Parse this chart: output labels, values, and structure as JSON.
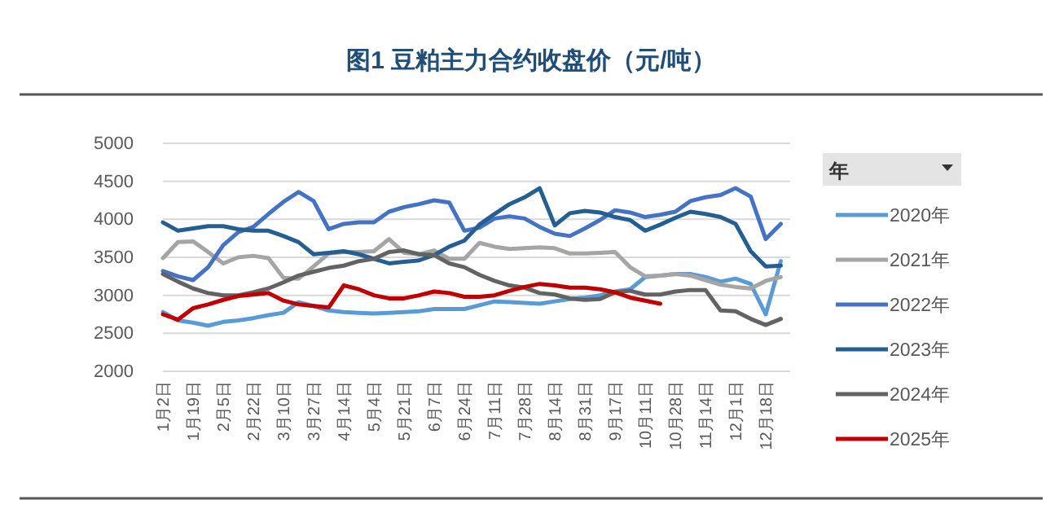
{
  "chart_data": {
    "type": "line",
    "title": "图1  豆粕主力合约收盘价（元/吨）",
    "legend_title": "年",
    "legend": "right",
    "grid": "y",
    "marker": "none",
    "line_style": "solid",
    "ylim": [
      2000,
      5000
    ],
    "yticks": [
      2000,
      2500,
      3000,
      3500,
      4000,
      4500,
      5000
    ],
    "categories": [
      "1月2日",
      null,
      "1月19日",
      null,
      "2月5日",
      null,
      "2月22日",
      null,
      "3月10日",
      null,
      "3月27日",
      null,
      "4月14日",
      null,
      "5月4日",
      null,
      "5月21日",
      null,
      "6月7日",
      null,
      "6月24日",
      null,
      "7月11日",
      null,
      "7月28日",
      null,
      "8月14日",
      null,
      "8月31日",
      null,
      "9月17日",
      null,
      "10月11日",
      null,
      "10月28日",
      null,
      "11月14日",
      null,
      "12月1日",
      null,
      "12月18日",
      null
    ],
    "series": [
      {
        "name": "2020年",
        "color": "#5b9bd5",
        "values": [
          2780,
          2670,
          2640,
          2600,
          2650,
          2670,
          2700,
          2740,
          2770,
          2910,
          2860,
          2800,
          2780,
          2770,
          2760,
          2770,
          2780,
          2790,
          2820,
          2820,
          2820,
          2870,
          2920,
          2910,
          2900,
          2890,
          2920,
          2950,
          2970,
          3000,
          3050,
          3080,
          3240,
          3260,
          3280,
          3280,
          3240,
          3180,
          3220,
          3150,
          2750,
          3450
        ]
      },
      {
        "name": "2021年",
        "color": "#a5a5a5",
        "values": [
          3490,
          3700,
          3710,
          3570,
          3420,
          3500,
          3520,
          3490,
          3230,
          3220,
          3380,
          3550,
          3570,
          3570,
          3580,
          3740,
          3560,
          3540,
          3590,
          3480,
          3480,
          3690,
          3640,
          3610,
          3620,
          3630,
          3620,
          3550,
          3550,
          3560,
          3570,
          3370,
          3250,
          3260,
          3280,
          3260,
          3200,
          3140,
          3110,
          3090,
          3190,
          3240
        ]
      },
      {
        "name": "2022年",
        "color": "#4472c4",
        "values": [
          3320,
          3250,
          3200,
          3370,
          3660,
          3830,
          3900,
          4070,
          4230,
          4360,
          4240,
          3870,
          3940,
          3960,
          3960,
          4100,
          4160,
          4200,
          4250,
          4220,
          3850,
          3890,
          4010,
          4040,
          4010,
          3900,
          3810,
          3780,
          3880,
          3990,
          4120,
          4090,
          4030,
          4060,
          4100,
          4240,
          4290,
          4320,
          4410,
          4300,
          3740,
          3940
        ]
      },
      {
        "name": "2023年",
        "color": "#255e91",
        "values": [
          3960,
          3850,
          3880,
          3910,
          3910,
          3870,
          3850,
          3850,
          3780,
          3700,
          3540,
          3560,
          3580,
          3540,
          3480,
          3420,
          3440,
          3460,
          3530,
          3640,
          3720,
          3930,
          4070,
          4200,
          4290,
          4410,
          3920,
          4080,
          4110,
          4090,
          4030,
          3990,
          3850,
          3930,
          4020,
          4100,
          4070,
          4030,
          3940,
          3580,
          3380,
          3390
        ]
      },
      {
        "name": "2024年",
        "color": "#636363",
        "values": [
          3280,
          3180,
          3090,
          3030,
          3000,
          3000,
          3040,
          3090,
          3170,
          3260,
          3310,
          3360,
          3390,
          3450,
          3480,
          3570,
          3590,
          3540,
          3530,
          3420,
          3370,
          3270,
          3190,
          3130,
          3100,
          3030,
          3010,
          2960,
          2940,
          2950,
          3040,
          3060,
          3010,
          3010,
          3050,
          3070,
          3070,
          2800,
          2790,
          2690,
          2610,
          2690
        ]
      },
      {
        "name": "2025年",
        "color": "#c00000",
        "values": [
          2750,
          2680,
          2830,
          2880,
          2940,
          2990,
          3010,
          3030,
          2930,
          2880,
          2860,
          2840,
          3130,
          3080,
          3000,
          2960,
          2960,
          3000,
          3050,
          3030,
          2980,
          2980,
          3000,
          3060,
          3110,
          3150,
          3130,
          3100,
          3100,
          3080,
          3040,
          2970,
          2930,
          2890,
          null,
          null,
          null,
          null,
          null,
          null,
          null,
          null
        ]
      }
    ]
  }
}
